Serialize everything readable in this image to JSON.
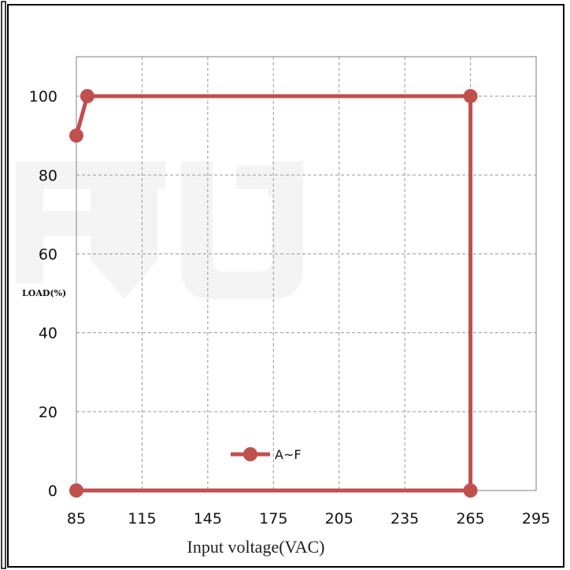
{
  "chart_data": {
    "type": "line",
    "title": "",
    "xlabel": "Input voltage(VAC)",
    "ylabel": "LOAD(%)",
    "xlim": [
      85,
      295
    ],
    "ylim": [
      0,
      110
    ],
    "xticks": [
      85,
      115,
      145,
      175,
      205,
      235,
      265,
      295
    ],
    "yticks": [
      0,
      20,
      40,
      60,
      80,
      100
    ],
    "grid": true,
    "legend_position": "bottom-center",
    "series": [
      {
        "name": "A~F",
        "color": "#c0504d",
        "points": [
          {
            "x": 85,
            "y": 90
          },
          {
            "x": 90,
            "y": 100
          },
          {
            "x": 265,
            "y": 100
          },
          {
            "x": 265,
            "y": 0
          },
          {
            "x": 85,
            "y": 0
          }
        ]
      }
    ]
  }
}
